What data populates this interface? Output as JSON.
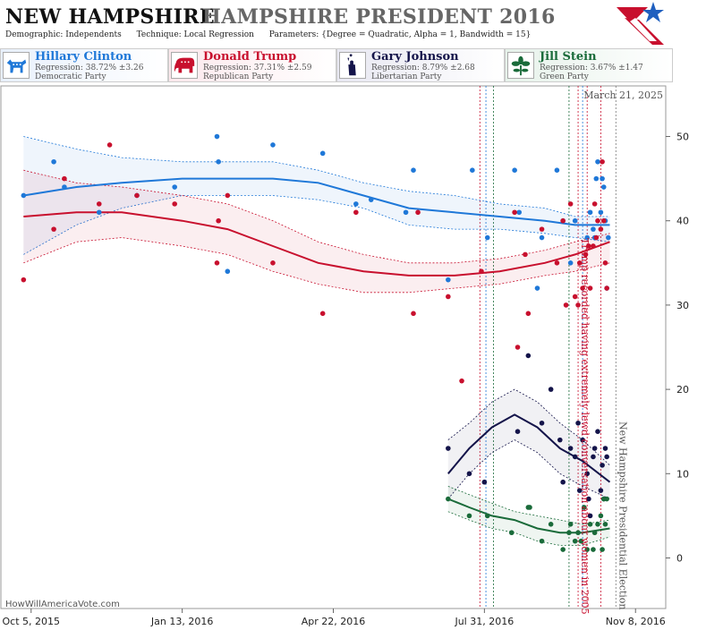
{
  "header": {
    "state": "NEW HAMPSHIRE",
    "race": "HAMPSHIRE PRESIDENT 2016",
    "demographic": "Demographic: Independents",
    "technique": "Technique: Local Regression",
    "parameters": "Parameters: {Degree = Quadratic, Alpha = 1, Bandwidth = 15}"
  },
  "candidates": [
    {
      "name": "Hillary Clinton",
      "regression": "Regression: 38.72% ±3.26",
      "party": "Democratic Party",
      "color": "#1f78d8",
      "icon": "donkey-icon"
    },
    {
      "name": "Donald Trump",
      "regression": "Regression: 37.31% ±2.59",
      "party": "Republican Party",
      "color": "#c8102e",
      "icon": "elephant-icon"
    },
    {
      "name": "Gary Johnson",
      "regression": "Regression: 8.79% ±2.68",
      "party": "Libertarian Party",
      "color": "#14144a",
      "icon": "statue-of-liberty-icon"
    },
    {
      "name": "Jill Stein",
      "regression": "Regression: 3.67% ±1.47",
      "party": "Green Party",
      "color": "#1a6b3a",
      "icon": "flower-icon"
    }
  ],
  "footer": "HowWillAmericaVote.com",
  "chart_data": {
    "type": "scatter",
    "x_ticks": [
      "Oct 5, 2015",
      "Jan 13, 2016",
      "Apr 22, 2016",
      "Jul 31, 2016",
      "Nov 8, 2016"
    ],
    "y_ticks": [
      0,
      10,
      20,
      30,
      40,
      50
    ],
    "ylim": [
      -6,
      56
    ],
    "xlim_days": [
      -20,
      420
    ],
    "annotations": {
      "date_label": "March 21, 2025",
      "trump_event": "Trump recorded having extremely lewd conversation about women in 2005",
      "election": "New Hampshire Presidential Election"
    },
    "vlines": [
      {
        "day": 297,
        "color": "#c8102e"
      },
      {
        "day": 301,
        "color": "#1f78d8"
      },
      {
        "day": 306,
        "color": "#1a6b3a"
      },
      {
        "day": 356,
        "color": "#1a6b3a"
      },
      {
        "day": 362,
        "color": "#c8102e"
      },
      {
        "day": 365,
        "color": "#1f78d8"
      },
      {
        "day": 368,
        "color": "#c8102e"
      },
      {
        "day": 377,
        "color": "#c8102e"
      },
      {
        "day": 387,
        "color": "#777777"
      }
    ],
    "series": [
      {
        "name": "Hillary Clinton",
        "color": "#1f78d8",
        "points": [
          [
            -5,
            43
          ],
          [
            15,
            47
          ],
          [
            22,
            44
          ],
          [
            45,
            41
          ],
          [
            70,
            43
          ],
          [
            95,
            44
          ],
          [
            123,
            50
          ],
          [
            124,
            47
          ],
          [
            130,
            34
          ],
          [
            160,
            49
          ],
          [
            193,
            48
          ],
          [
            215,
            42
          ],
          [
            225,
            42.5
          ],
          [
            248,
            41
          ],
          [
            253,
            46
          ],
          [
            276,
            33
          ],
          [
            292,
            46
          ],
          [
            302,
            38
          ],
          [
            320,
            46
          ],
          [
            323,
            41
          ],
          [
            335,
            32
          ],
          [
            338,
            38
          ],
          [
            348,
            46
          ],
          [
            352,
            40
          ],
          [
            357,
            35
          ],
          [
            360,
            40
          ],
          [
            368,
            38
          ],
          [
            370,
            41
          ],
          [
            372,
            39
          ],
          [
            373,
            38
          ],
          [
            374,
            45
          ],
          [
            375,
            47
          ],
          [
            377,
            41
          ],
          [
            378,
            45
          ],
          [
            379,
            44
          ],
          [
            380,
            40
          ],
          [
            381,
            32
          ],
          [
            382,
            38
          ]
        ],
        "fit": [
          [
            -5,
            43
          ],
          [
            30,
            44
          ],
          [
            60,
            44.5
          ],
          [
            100,
            45
          ],
          [
            130,
            45
          ],
          [
            160,
            45
          ],
          [
            190,
            44.5
          ],
          [
            220,
            43
          ],
          [
            250,
            41.5
          ],
          [
            280,
            41
          ],
          [
            310,
            40.5
          ],
          [
            340,
            40
          ],
          [
            360,
            39.5
          ],
          [
            383,
            39.5
          ]
        ],
        "upper": [
          [
            -5,
            50
          ],
          [
            30,
            48.5
          ],
          [
            60,
            47.5
          ],
          [
            100,
            47
          ],
          [
            130,
            47
          ],
          [
            160,
            47
          ],
          [
            190,
            46
          ],
          [
            220,
            44.5
          ],
          [
            250,
            43.5
          ],
          [
            280,
            43
          ],
          [
            310,
            42
          ],
          [
            340,
            41.5
          ],
          [
            360,
            40.5
          ],
          [
            383,
            40.5
          ]
        ],
        "lower": [
          [
            -5,
            36
          ],
          [
            30,
            39.5
          ],
          [
            60,
            41.5
          ],
          [
            100,
            43
          ],
          [
            130,
            43
          ],
          [
            160,
            43
          ],
          [
            190,
            42.5
          ],
          [
            220,
            41.5
          ],
          [
            250,
            39.5
          ],
          [
            280,
            39
          ],
          [
            310,
            39
          ],
          [
            340,
            38.5
          ],
          [
            360,
            38
          ],
          [
            383,
            37.5
          ]
        ]
      },
      {
        "name": "Donald Trump",
        "color": "#c8102e",
        "points": [
          [
            -5,
            33
          ],
          [
            15,
            39
          ],
          [
            22,
            45
          ],
          [
            45,
            42
          ],
          [
            52,
            49
          ],
          [
            70,
            43
          ],
          [
            95,
            42
          ],
          [
            123,
            35
          ],
          [
            124,
            40
          ],
          [
            130,
            43
          ],
          [
            160,
            35
          ],
          [
            193,
            29
          ],
          [
            215,
            41
          ],
          [
            253,
            29
          ],
          [
            256,
            41
          ],
          [
            276,
            31
          ],
          [
            285,
            21
          ],
          [
            298,
            34
          ],
          [
            320,
            41
          ],
          [
            322,
            25
          ],
          [
            327,
            36
          ],
          [
            329,
            29
          ],
          [
            338,
            39
          ],
          [
            348,
            35
          ],
          [
            352,
            40
          ],
          [
            354,
            30
          ],
          [
            357,
            42
          ],
          [
            360,
            31
          ],
          [
            362,
            30
          ],
          [
            363,
            35
          ],
          [
            365,
            32
          ],
          [
            367,
            36
          ],
          [
            369,
            37
          ],
          [
            370,
            32
          ],
          [
            372,
            37
          ],
          [
            373,
            42
          ],
          [
            374,
            38
          ],
          [
            375,
            40
          ],
          [
            377,
            39
          ],
          [
            378,
            47
          ],
          [
            379,
            40
          ],
          [
            380,
            35
          ],
          [
            381,
            32
          ]
        ],
        "fit": [
          [
            -5,
            40.5
          ],
          [
            30,
            41
          ],
          [
            60,
            41
          ],
          [
            100,
            40
          ],
          [
            130,
            39
          ],
          [
            160,
            37
          ],
          [
            190,
            35
          ],
          [
            220,
            34
          ],
          [
            250,
            33.5
          ],
          [
            280,
            33.5
          ],
          [
            310,
            34
          ],
          [
            340,
            35
          ],
          [
            360,
            36
          ],
          [
            383,
            37.5
          ]
        ],
        "upper": [
          [
            -5,
            46
          ],
          [
            30,
            44.5
          ],
          [
            60,
            44
          ],
          [
            100,
            43
          ],
          [
            130,
            42
          ],
          [
            160,
            40
          ],
          [
            190,
            37.5
          ],
          [
            220,
            36
          ],
          [
            250,
            35
          ],
          [
            280,
            35
          ],
          [
            310,
            35.5
          ],
          [
            340,
            36.5
          ],
          [
            360,
            37.5
          ],
          [
            383,
            38.5
          ]
        ],
        "lower": [
          [
            -5,
            35
          ],
          [
            30,
            37.5
          ],
          [
            60,
            38
          ],
          [
            100,
            37
          ],
          [
            130,
            36
          ],
          [
            160,
            34
          ],
          [
            190,
            32.5
          ],
          [
            220,
            31.5
          ],
          [
            250,
            31.5
          ],
          [
            280,
            32
          ],
          [
            310,
            32.5
          ],
          [
            340,
            33.5
          ],
          [
            360,
            34
          ],
          [
            383,
            35
          ]
        ]
      },
      {
        "name": "Gary Johnson",
        "color": "#14144a",
        "points": [
          [
            276,
            13
          ],
          [
            290,
            10
          ],
          [
            300,
            9
          ],
          [
            322,
            15
          ],
          [
            329,
            24
          ],
          [
            338,
            16
          ],
          [
            344,
            20
          ],
          [
            350,
            14
          ],
          [
            352,
            9
          ],
          [
            357,
            13
          ],
          [
            360,
            12
          ],
          [
            362,
            16
          ],
          [
            363,
            8
          ],
          [
            365,
            14
          ],
          [
            368,
            10
          ],
          [
            369,
            7
          ],
          [
            370,
            5
          ],
          [
            372,
            12
          ],
          [
            373,
            13
          ],
          [
            375,
            15
          ],
          [
            377,
            8
          ],
          [
            378,
            11
          ],
          [
            379,
            7
          ],
          [
            380,
            13
          ],
          [
            381,
            12
          ]
        ],
        "fit": [
          [
            276,
            10
          ],
          [
            290,
            13
          ],
          [
            305,
            15.5
          ],
          [
            320,
            17
          ],
          [
            335,
            15.5
          ],
          [
            350,
            13
          ],
          [
            365,
            11.5
          ],
          [
            383,
            9
          ]
        ],
        "upper": [
          [
            276,
            14
          ],
          [
            290,
            16
          ],
          [
            305,
            18.5
          ],
          [
            320,
            20
          ],
          [
            335,
            18.5
          ],
          [
            350,
            16
          ],
          [
            365,
            14
          ],
          [
            383,
            11
          ]
        ],
        "lower": [
          [
            276,
            7
          ],
          [
            290,
            10
          ],
          [
            305,
            12.5
          ],
          [
            320,
            14
          ],
          [
            335,
            12.5
          ],
          [
            350,
            10
          ],
          [
            365,
            8.5
          ],
          [
            383,
            7
          ]
        ]
      },
      {
        "name": "Jill Stein",
        "color": "#1a6b3a",
        "points": [
          [
            276,
            7
          ],
          [
            290,
            5
          ],
          [
            302,
            5
          ],
          [
            318,
            3
          ],
          [
            329,
            6
          ],
          [
            330,
            6
          ],
          [
            338,
            2
          ],
          [
            344,
            4
          ],
          [
            352,
            1
          ],
          [
            356,
            3
          ],
          [
            357,
            4
          ],
          [
            360,
            2
          ],
          [
            362,
            3
          ],
          [
            364,
            2
          ],
          [
            366,
            6
          ],
          [
            368,
            1
          ],
          [
            370,
            4
          ],
          [
            372,
            1
          ],
          [
            373,
            3
          ],
          [
            375,
            4
          ],
          [
            377,
            5
          ],
          [
            378,
            1
          ],
          [
            379,
            7
          ],
          [
            380,
            4
          ],
          [
            381,
            7
          ]
        ],
        "fit": [
          [
            276,
            7
          ],
          [
            290,
            6
          ],
          [
            305,
            5
          ],
          [
            320,
            4.5
          ],
          [
            335,
            3.5
          ],
          [
            350,
            3
          ],
          [
            365,
            3
          ],
          [
            383,
            3.5
          ]
        ],
        "upper": [
          [
            276,
            8.5
          ],
          [
            290,
            7.5
          ],
          [
            305,
            6.5
          ],
          [
            320,
            5.5
          ],
          [
            335,
            5
          ],
          [
            350,
            4.5
          ],
          [
            365,
            4
          ],
          [
            383,
            4.5
          ]
        ],
        "lower": [
          [
            276,
            5.5
          ],
          [
            290,
            4.5
          ],
          [
            305,
            3.5
          ],
          [
            320,
            3
          ],
          [
            335,
            2
          ],
          [
            350,
            1.5
          ],
          [
            365,
            1.5
          ],
          [
            383,
            2.5
          ]
        ]
      }
    ]
  }
}
